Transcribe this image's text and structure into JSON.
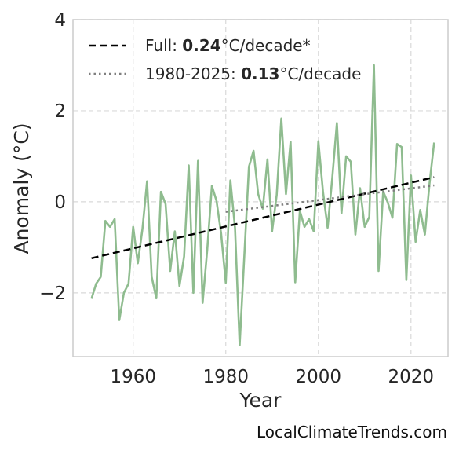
{
  "chart_data": {
    "type": "line",
    "title": "",
    "xlabel": "Year",
    "ylabel": "Anomaly (°C)",
    "xlim": [
      1947,
      2028
    ],
    "ylim": [
      -3.4,
      4
    ],
    "xticks": [
      1960,
      1980,
      2000,
      2020
    ],
    "yticks": [
      -2,
      0,
      2,
      4
    ],
    "xtick_labels": [
      "1960",
      "1980",
      "2000",
      "2020"
    ],
    "ytick_labels": [
      "−2",
      "0",
      "2",
      "4"
    ],
    "grid": true,
    "legend_position": "top-left",
    "series": [
      {
        "style": "line",
        "color": "#8fbc8f",
        "x": [
          1951,
          1952,
          1953,
          1954,
          1955,
          1956,
          1957,
          1958,
          1959,
          1960,
          1961,
          1962,
          1963,
          1964,
          1965,
          1966,
          1967,
          1968,
          1969,
          1970,
          1971,
          1972,
          1973,
          1974,
          1975,
          1976,
          1977,
          1978,
          1979,
          1980,
          1981,
          1982,
          1983,
          1984,
          1985,
          1986,
          1987,
          1988,
          1989,
          1990,
          1991,
          1992,
          1993,
          1994,
          1995,
          1996,
          1997,
          1998,
          1999,
          2000,
          2001,
          2002,
          2003,
          2004,
          2005,
          2006,
          2007,
          2008,
          2009,
          2010,
          2011,
          2012,
          2013,
          2014,
          2015,
          2016,
          2017,
          2018,
          2019,
          2020,
          2021,
          2022,
          2023,
          2024,
          2025
        ],
        "y": [
          -2.13,
          -1.8,
          -1.65,
          -0.42,
          -0.55,
          -0.38,
          -2.6,
          -2.0,
          -1.8,
          -0.55,
          -1.35,
          -0.6,
          0.45,
          -1.65,
          -2.12,
          0.22,
          -0.05,
          -1.52,
          -0.65,
          -1.85,
          -1.2,
          0.8,
          -2.0,
          0.9,
          -2.22,
          -1.05,
          0.35,
          0.02,
          -0.7,
          -1.78,
          0.47,
          -0.58,
          -3.15,
          -1.2,
          0.77,
          1.12,
          0.17,
          -0.15,
          0.93,
          -0.65,
          0.15,
          1.83,
          0.17,
          1.32,
          -1.77,
          -0.2,
          -0.55,
          -0.38,
          -0.65,
          1.33,
          0.22,
          -0.57,
          0.52,
          1.73,
          -0.25,
          1.0,
          0.88,
          -0.72,
          0.3,
          -0.55,
          -0.33,
          3.0,
          -1.52,
          0.23,
          -0.02,
          -0.35,
          1.27,
          1.2,
          -1.72,
          0.58,
          -0.88,
          -0.18,
          -0.72,
          0.4,
          1.3
        ]
      },
      {
        "name": "Full",
        "style": "dashed",
        "color": "#000000",
        "x": [
          1951,
          2025
        ],
        "y": [
          -1.24,
          0.54
        ],
        "legend_value": "0.24",
        "legend_suffix": "°C/decade*"
      },
      {
        "name": "1980-2025",
        "style": "dotted",
        "color": "#7f7f7f",
        "x": [
          1980,
          2025
        ],
        "y": [
          -0.22,
          0.36
        ],
        "legend_value": "0.13",
        "legend_suffix": "°C/decade"
      }
    ]
  },
  "legend": {
    "full_prefix": "Full: ",
    "full_value": "0.24",
    "full_suffix": "°C/decade*",
    "recent_prefix": "1980-2025: ",
    "recent_value": "0.13",
    "recent_suffix": "°C/decade"
  },
  "watermark": "LocalClimateTrends.com"
}
